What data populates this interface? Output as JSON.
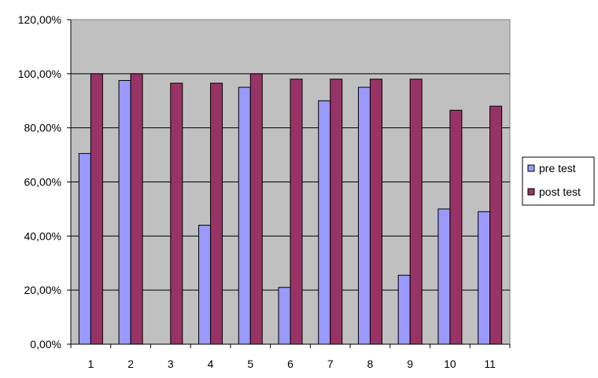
{
  "chart_data": {
    "type": "bar",
    "categories": [
      "1",
      "2",
      "3",
      "4",
      "5",
      "6",
      "7",
      "8",
      "9",
      "10",
      "11"
    ],
    "series": [
      {
        "name": "pre test",
        "values": [
          70.5,
          97.5,
          0,
          44,
          95,
          21,
          90,
          95,
          25.5,
          50,
          49
        ],
        "color": "#9999ff"
      },
      {
        "name": "post test",
        "values": [
          100,
          100,
          96.5,
          96.5,
          100,
          98,
          98,
          98,
          98,
          86.5,
          88
        ],
        "color": "#993366"
      }
    ],
    "title": "",
    "xlabel": "",
    "ylabel": "",
    "ylim": [
      0,
      120
    ],
    "y_ticks": [
      0,
      20,
      40,
      60,
      80,
      100,
      120
    ],
    "y_tick_labels": [
      "0,00%",
      "20,00%",
      "40,00%",
      "60,00%",
      "80,00%",
      "100,00%",
      "120,00%"
    ],
    "grid": true,
    "legend_position": "right",
    "plot_background": "#c0c0c0"
  }
}
